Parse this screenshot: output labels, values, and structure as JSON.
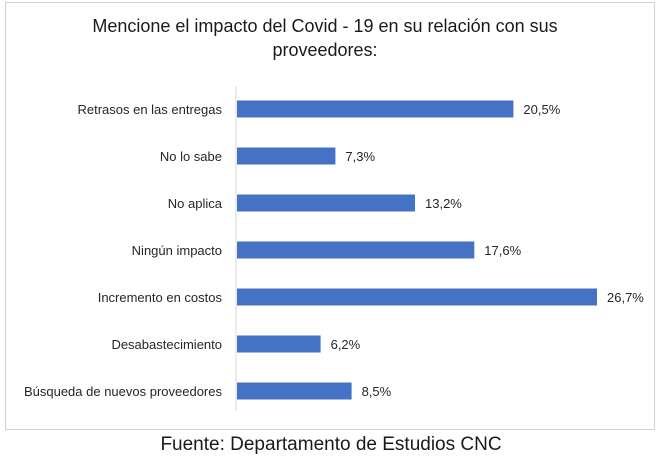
{
  "chart_data": {
    "type": "bar",
    "orientation": "horizontal",
    "title": "Mencione el impacto del Covid - 19 en su relación con sus proveedores:",
    "categories": [
      "Retrasos en las entregas",
      "No lo sabe",
      "No aplica",
      "Ningún impacto",
      "Incremento en costos",
      "Desabastecimiento",
      "Búsqueda de nuevos proveedores"
    ],
    "values": [
      20.5,
      7.3,
      13.2,
      17.6,
      26.7,
      6.2,
      8.5
    ],
    "value_labels": [
      "20,5%",
      "7,3%",
      "13,2%",
      "17,6%",
      "26,7%",
      "6,2%",
      "8,5%"
    ],
    "xlim": [
      0,
      28
    ],
    "grid": false,
    "legend": "none",
    "bar_color": "#4472C4"
  },
  "source": "Fuente: Departamento de Estudios CNC"
}
